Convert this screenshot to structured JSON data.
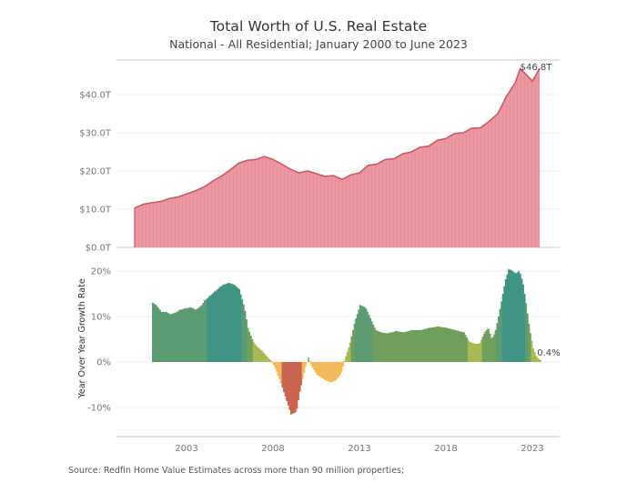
{
  "header": {
    "title": "Total Worth of U.S. Real Estate",
    "subtitle": "National - All Residential; January 2000 to June 2023"
  },
  "footer": {
    "source": "Source: Redfin Home Value Estimates across more than 90 million properties;"
  },
  "chart_data": [
    {
      "type": "area",
      "title": "Total Worth of U.S. Real Estate",
      "xlabel": "",
      "ylabel": "",
      "xlim": [
        2000.0,
        2023.42
      ],
      "ylim": [
        0,
        48
      ],
      "y_ticks": [
        0,
        10,
        20,
        30,
        40
      ],
      "y_tick_labels": [
        "$0.0T",
        "$10.0T",
        "$20.0T",
        "$30.0T",
        "$40.0T"
      ],
      "grid": true,
      "color": "#e8929c",
      "line_color": "#d0566a",
      "x": [
        2000.0,
        2000.5,
        2001.0,
        2001.5,
        2002.0,
        2002.5,
        2003.0,
        2003.5,
        2004.0,
        2004.5,
        2005.0,
        2005.5,
        2006.0,
        2006.5,
        2007.0,
        2007.5,
        2008.0,
        2008.5,
        2009.0,
        2009.5,
        2010.0,
        2010.5,
        2011.0,
        2011.5,
        2012.0,
        2012.5,
        2013.0,
        2013.5,
        2014.0,
        2014.5,
        2015.0,
        2015.5,
        2016.0,
        2016.5,
        2017.0,
        2017.5,
        2018.0,
        2018.5,
        2019.0,
        2019.5,
        2020.0,
        2020.5,
        2021.0,
        2021.5,
        2022.0,
        2022.3,
        2022.8,
        2023.0,
        2023.42
      ],
      "values": [
        10.3,
        11.3,
        11.7,
        12.0,
        12.8,
        13.2,
        14.0,
        14.8,
        15.8,
        17.3,
        18.6,
        20.2,
        22.0,
        22.8,
        23.0,
        23.8,
        23.0,
        21.8,
        20.5,
        19.5,
        20.0,
        19.3,
        18.6,
        18.8,
        17.8,
        19.0,
        19.5,
        21.5,
        21.8,
        23.0,
        23.2,
        24.5,
        25.0,
        26.2,
        26.5,
        28.0,
        28.5,
        29.8,
        30.0,
        31.2,
        31.3,
        33.0,
        35.0,
        39.5,
        43.0,
        46.8,
        44.5,
        43.5,
        46.8
      ],
      "annotations": [
        {
          "x": 2023.42,
          "label": "$46.8T"
        }
      ]
    },
    {
      "type": "area",
      "title": "",
      "xlabel": "",
      "ylabel": "Year Over Year Growth Rate",
      "xlim": [
        2000.0,
        2023.42
      ],
      "ylim": [
        -16,
        22
      ],
      "y_ticks": [
        -10,
        0,
        10,
        20
      ],
      "y_tick_labels": [
        "-10%",
        "0%",
        "10%",
        "20%"
      ],
      "x_ticks": [
        2003,
        2008,
        2013,
        2018,
        2023
      ],
      "x_tick_labels": [
        "2003",
        "2008",
        "2013",
        "2018",
        "2023"
      ],
      "grid": true,
      "color_scale": "diverging: red (negative) - orange - yellow-green - green - teal (high positive)",
      "x": [
        2001.0,
        2001.2,
        2001.5,
        2001.8,
        2002.0,
        2002.3,
        2002.6,
        2002.9,
        2003.2,
        2003.5,
        2003.8,
        2004.0,
        2004.3,
        2004.6,
        2004.9,
        2005.1,
        2005.4,
        2005.7,
        2006.0,
        2006.3,
        2006.5,
        2006.8,
        2007.0,
        2007.3,
        2007.6,
        2007.9,
        2008.1,
        2008.4,
        2008.7,
        2009.0,
        2009.3,
        2009.5,
        2009.8,
        2010.0,
        2010.2,
        2010.5,
        2010.8,
        2011.0,
        2011.3,
        2011.6,
        2011.9,
        2012.1,
        2012.4,
        2012.7,
        2013.0,
        2013.3,
        2013.6,
        2013.9,
        2014.2,
        2014.5,
        2014.8,
        2015.1,
        2015.5,
        2016.0,
        2016.5,
        2017.0,
        2017.5,
        2018.0,
        2018.5,
        2019.0,
        2019.3,
        2019.6,
        2019.9,
        2020.2,
        2020.4,
        2020.6,
        2020.8,
        2021.0,
        2021.2,
        2021.4,
        2021.6,
        2021.8,
        2022.0,
        2022.2,
        2022.4,
        2022.6,
        2022.8,
        2023.0,
        2023.2,
        2023.42
      ],
      "values": [
        13.0,
        12.5,
        11.0,
        11.0,
        10.5,
        10.8,
        11.5,
        11.8,
        12.0,
        11.5,
        12.3,
        13.5,
        14.5,
        15.5,
        16.5,
        17.0,
        17.4,
        17.0,
        16.0,
        12.0,
        7.5,
        4.5,
        3.5,
        2.5,
        1.2,
        0.0,
        -1.5,
        -4.5,
        -8.0,
        -11.5,
        -11.0,
        -6.5,
        -1.5,
        1.0,
        -1.0,
        -2.8,
        -3.5,
        -4.0,
        -4.5,
        -4.0,
        -2.5,
        0.5,
        4.0,
        9.0,
        12.5,
        12.0,
        9.5,
        7.0,
        6.5,
        6.3,
        6.5,
        6.8,
        6.5,
        7.0,
        7.0,
        7.5,
        7.8,
        7.5,
        7.0,
        6.5,
        4.5,
        4.0,
        4.0,
        6.5,
        7.5,
        5.0,
        6.5,
        10.0,
        14.0,
        18.0,
        20.5,
        20.0,
        19.5,
        20.0,
        17.5,
        12.5,
        7.0,
        3.0,
        1.0,
        0.4
      ],
      "annotations": [
        {
          "x": 2023.42,
          "label": "0.4%"
        }
      ]
    }
  ]
}
